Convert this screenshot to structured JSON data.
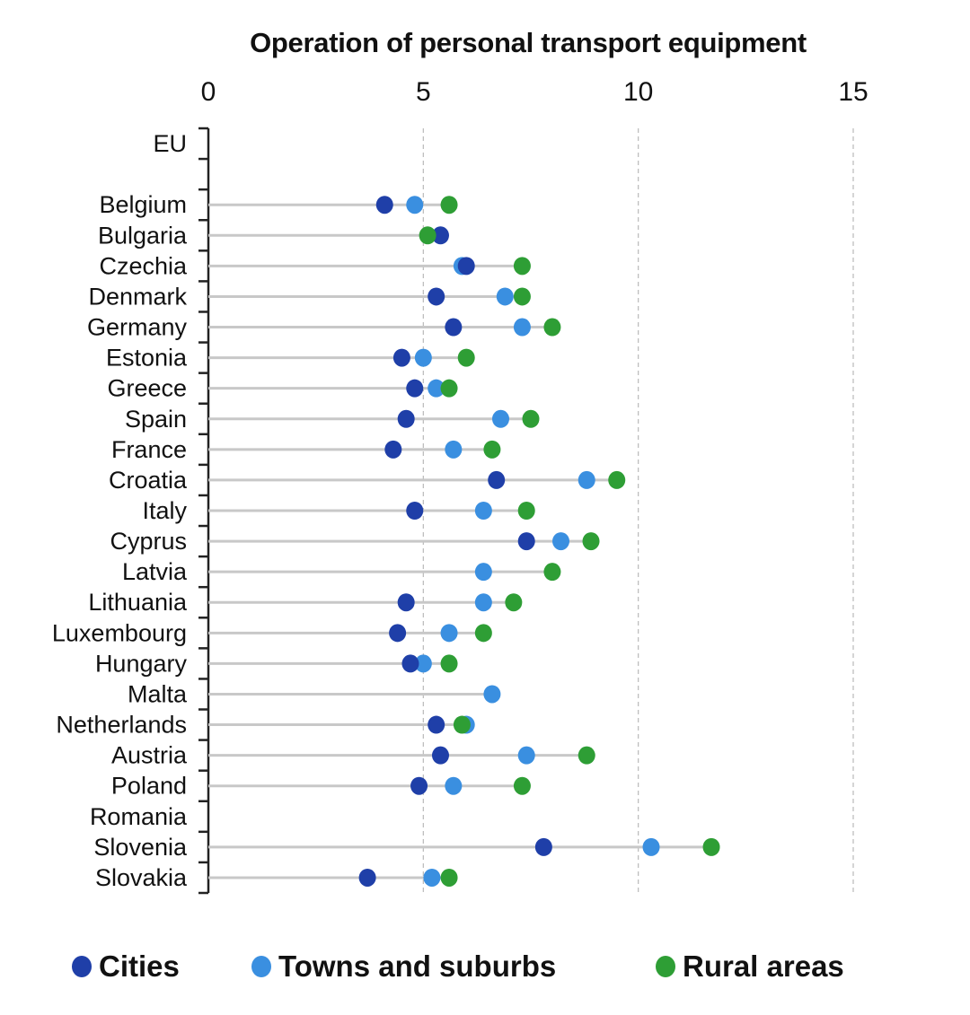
{
  "chart_data": {
    "type": "scatter",
    "subtype": "dot-plot-horizontal",
    "title": "Operation of personal transport equipment",
    "xlabel": "",
    "ylabel": "",
    "xlim": [
      0,
      15
    ],
    "x_ticks": [
      0,
      5,
      10,
      15
    ],
    "x_tick_labels": [
      "0",
      "5",
      "10",
      "15"
    ],
    "x_axis_position": "top",
    "grid": "vertical dashed at 5, 10, 15",
    "legend_position": "bottom",
    "categories": [
      "EU",
      "",
      "Belgium",
      "Bulgaria",
      "Czechia",
      "Denmark",
      "Germany",
      "Estonia",
      "Greece",
      "Spain",
      "France",
      "Croatia",
      "Italy",
      "Cyprus",
      "Latvia",
      "Lithuania",
      "Luxembourg",
      "Hungary",
      "Malta",
      "Netherlands",
      "Austria",
      "Poland",
      "Romania",
      "Slovenia",
      "Slovakia"
    ],
    "series": [
      {
        "name": "Cities",
        "color": "#1f3fa8",
        "values": [
          null,
          null,
          4.1,
          5.4,
          6.0,
          5.3,
          5.7,
          4.5,
          4.8,
          4.6,
          4.3,
          6.7,
          4.8,
          7.4,
          null,
          4.6,
          4.4,
          4.7,
          null,
          5.3,
          5.4,
          4.9,
          null,
          7.8,
          3.7
        ]
      },
      {
        "name": "Towns and suburbs",
        "color": "#3a8fe0",
        "values": [
          null,
          null,
          4.8,
          null,
          5.9,
          6.9,
          7.3,
          5.0,
          5.3,
          6.8,
          5.7,
          8.8,
          6.4,
          8.2,
          6.4,
          6.4,
          5.6,
          5.0,
          6.6,
          6.0,
          7.4,
          5.7,
          null,
          10.3,
          5.2
        ]
      },
      {
        "name": "Rural areas",
        "color": "#2e9e35",
        "values": [
          null,
          null,
          5.6,
          5.1,
          7.3,
          7.3,
          8.0,
          6.0,
          5.6,
          7.5,
          6.6,
          9.5,
          7.4,
          8.9,
          8.0,
          7.1,
          6.4,
          5.6,
          null,
          5.9,
          8.8,
          7.3,
          null,
          11.7,
          5.6
        ]
      }
    ]
  },
  "legend": {
    "items": [
      {
        "label": "Cities",
        "color": "#1f3fa8"
      },
      {
        "label": "Towns and suburbs",
        "color": "#3a8fe0"
      },
      {
        "label": "Rural areas",
        "color": "#2e9e35"
      }
    ]
  }
}
